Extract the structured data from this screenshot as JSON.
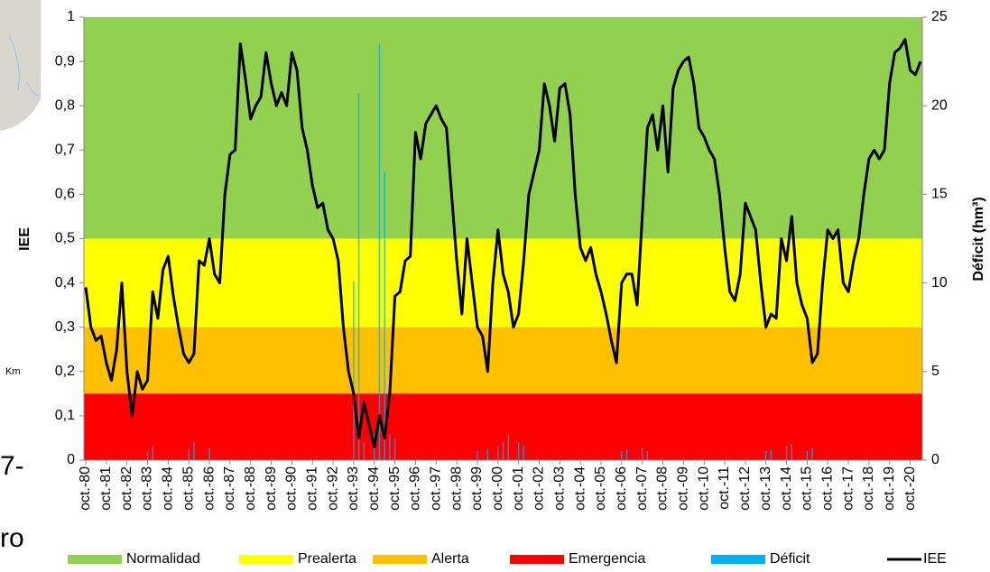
{
  "chart_data": {
    "type": "line",
    "y_label": "IEE",
    "y2_label": "Déficit (hm³)",
    "fragments": [
      "Km",
      "7-",
      "ro"
    ],
    "bands": [
      {
        "name": "Normalidad",
        "color": "#92d050",
        "from": 0.5,
        "to": 1
      },
      {
        "name": "Prealerta",
        "color": "#ffff00",
        "from": 0.3,
        "to": 0.5
      },
      {
        "name": "Alerta",
        "color": "#ffc000",
        "from": 0.15,
        "to": 0.3
      },
      {
        "name": "Emergencia",
        "color": "#ff0000",
        "from": 0,
        "to": 0.15
      }
    ],
    "categories": [
      "oct.-80",
      null,
      null,
      null,
      "oct.-81",
      null,
      null,
      null,
      "oct.-82",
      null,
      null,
      null,
      "oct.-83",
      null,
      null,
      null,
      "oct.-84",
      null,
      null,
      null,
      "oct.-85",
      null,
      null,
      null,
      "oct.-86",
      null,
      null,
      null,
      "oct.-87",
      null,
      null,
      null,
      "oct.-88",
      null,
      null,
      null,
      "oct.-89",
      null,
      null,
      null,
      "oct.-90",
      null,
      null,
      null,
      "oct.-91",
      null,
      null,
      null,
      "oct.-92",
      null,
      null,
      null,
      "oct.-93",
      null,
      null,
      null,
      "oct.-94",
      null,
      null,
      null,
      "oct.-95",
      null,
      null,
      null,
      "oct.-96",
      null,
      null,
      null,
      "oct.-97",
      null,
      null,
      null,
      "oct.-98",
      null,
      null,
      null,
      "oct.-99",
      null,
      null,
      null,
      "oct.-00",
      null,
      null,
      null,
      "oct.-01",
      null,
      null,
      null,
      "oct.-02",
      null,
      null,
      null,
      "oct.-03",
      null,
      null,
      null,
      "oct.-04",
      null,
      null,
      null,
      "oct.-05",
      null,
      null,
      null,
      "oct.-06",
      null,
      null,
      null,
      "oct.-07",
      null,
      null,
      null,
      "oct.-08",
      null,
      null,
      null,
      "oct.-09",
      null,
      null,
      null,
      "oct.-10",
      null,
      null,
      null,
      "oct.-11",
      null,
      null,
      null,
      "oct.-12",
      null,
      null,
      null,
      "oct.-13",
      null,
      null,
      null,
      "oct.-14",
      null,
      null,
      null,
      "oct.-15",
      null,
      null,
      null,
      "oct.-16",
      null,
      null,
      null,
      "oct.-17",
      null,
      null,
      null,
      "oct.-18",
      null,
      null,
      null,
      "oct.-19",
      null,
      null,
      null,
      "oct.-20",
      null,
      null
    ],
    "series": [
      {
        "name": "Déficit",
        "color": "#00b0f0",
        "axis": "y2",
        "type": "bar",
        "values": [
          0,
          0,
          0,
          0,
          0,
          0,
          0,
          0,
          0,
          0,
          0,
          0,
          0.5,
          0.8,
          0,
          0,
          0,
          0,
          0,
          0,
          0.6,
          1.0,
          0,
          0,
          0.7,
          0,
          0,
          0,
          0,
          0,
          0,
          0,
          0,
          0,
          0,
          0,
          0,
          0,
          0,
          0,
          0,
          0,
          0,
          0,
          0,
          0,
          0,
          0,
          0,
          0,
          0,
          0,
          10.1,
          20.7,
          1.0,
          0,
          1.5,
          23.5,
          16.3,
          1.5,
          1.2,
          0,
          0,
          0,
          0,
          0,
          0,
          0,
          0,
          0,
          0,
          0,
          0,
          0,
          0,
          0,
          0.5,
          0,
          0.6,
          0,
          0.8,
          1.0,
          1.4,
          0,
          1.0,
          0.8,
          0,
          0,
          0,
          0,
          0,
          0,
          0,
          0,
          0,
          0,
          0,
          0,
          0,
          0,
          0,
          0,
          0,
          0,
          0.5,
          0.6,
          0,
          0,
          0.7,
          0.5,
          0,
          0,
          0,
          0,
          0,
          0,
          0,
          0,
          0,
          0,
          0,
          0,
          0,
          0,
          0,
          0,
          0,
          0,
          0,
          0,
          0,
          0,
          0.5,
          0.6,
          0,
          0,
          0.8,
          0.9,
          0,
          0,
          0.5,
          0.7,
          0,
          0,
          0,
          0,
          0,
          0,
          0,
          0,
          0,
          0,
          0,
          0,
          0,
          0,
          0,
          0,
          0,
          0,
          0,
          0,
          0
        ]
      },
      {
        "name": "IEE",
        "color": "#000000",
        "type": "line",
        "values": [
          0.39,
          0.3,
          0.27,
          0.28,
          0.22,
          0.18,
          0.25,
          0.4,
          0.2,
          0.1,
          0.2,
          0.16,
          0.18,
          0.38,
          0.32,
          0.43,
          0.46,
          0.37,
          0.3,
          0.24,
          0.22,
          0.24,
          0.45,
          0.44,
          0.5,
          0.42,
          0.4,
          0.6,
          0.69,
          0.7,
          0.94,
          0.86,
          0.77,
          0.8,
          0.82,
          0.92,
          0.85,
          0.8,
          0.83,
          0.8,
          0.92,
          0.88,
          0.75,
          0.7,
          0.62,
          0.57,
          0.58,
          0.52,
          0.5,
          0.45,
          0.3,
          0.2,
          0.15,
          0.05,
          0.13,
          0.08,
          0.03,
          0.1,
          0.05,
          0.15,
          0.37,
          0.38,
          0.45,
          0.46,
          0.74,
          0.68,
          0.76,
          0.78,
          0.8,
          0.77,
          0.75,
          0.6,
          0.45,
          0.33,
          0.5,
          0.4,
          0.3,
          0.28,
          0.2,
          0.4,
          0.52,
          0.42,
          0.38,
          0.3,
          0.33,
          0.45,
          0.6,
          0.65,
          0.7,
          0.85,
          0.8,
          0.72,
          0.84,
          0.85,
          0.78,
          0.6,
          0.48,
          0.45,
          0.48,
          0.42,
          0.38,
          0.33,
          0.27,
          0.22,
          0.4,
          0.42,
          0.42,
          0.35,
          0.55,
          0.75,
          0.78,
          0.7,
          0.8,
          0.65,
          0.84,
          0.88,
          0.9,
          0.91,
          0.85,
          0.75,
          0.73,
          0.7,
          0.68,
          0.6,
          0.48,
          0.38,
          0.36,
          0.42,
          0.58,
          0.55,
          0.52,
          0.4,
          0.3,
          0.33,
          0.32,
          0.5,
          0.45,
          0.55,
          0.4,
          0.35,
          0.32,
          0.22,
          0.24,
          0.4,
          0.52,
          0.5,
          0.52,
          0.4,
          0.38,
          0.45,
          0.5,
          0.6,
          0.68,
          0.7,
          0.68,
          0.7,
          0.85,
          0.92,
          0.93,
          0.95,
          0.88,
          0.87,
          0.9
        ]
      }
    ],
    "ylim": [
      0,
      1
    ],
    "yticks": [
      0,
      {
        "value": 0.1,
        "label": "0,1"
      },
      {
        "value": 0.2,
        "label": "0,2"
      },
      {
        "value": 0.3,
        "label": "0,3"
      },
      {
        "value": 0.4,
        "label": "0,4"
      },
      {
        "value": 0.5,
        "label": "0,5"
      },
      {
        "value": 0.6,
        "label": "0,6"
      },
      {
        "value": 0.7,
        "label": "0,7"
      },
      {
        "value": 0.8,
        "label": "0,8"
      },
      {
        "value": 0.9,
        "label": "0,9"
      },
      1
    ],
    "y2lim": [
      0,
      25
    ],
    "y2ticks": [
      0,
      5,
      10,
      15,
      20,
      25
    ],
    "legend": "bottom"
  }
}
